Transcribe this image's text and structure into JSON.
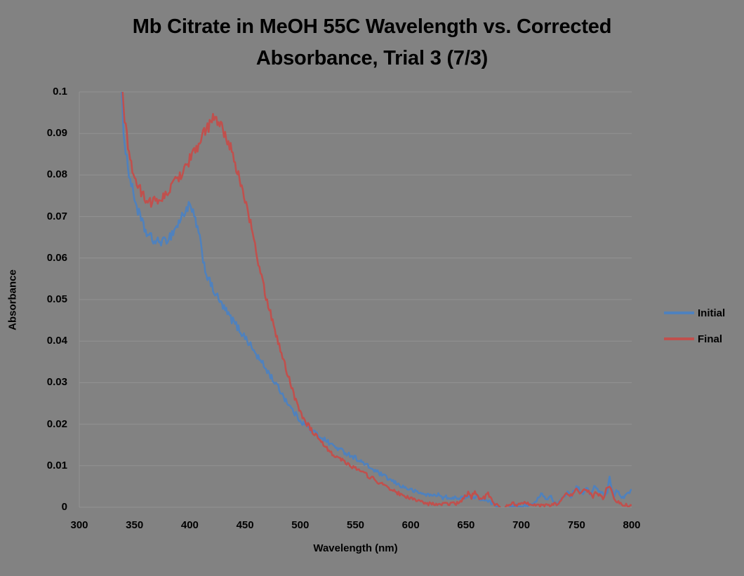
{
  "chart_data": {
    "type": "line",
    "title": "Mb Citrate in MeOH 55C Wavelength vs. Corrected Absorbance, Trial 3 (7/3)",
    "title_lines": [
      "Mb Citrate in MeOH 55C Wavelength vs. Corrected",
      "Absorbance, Trial 3 (7/3)"
    ],
    "xlabel": "Wavelength (nm)",
    "ylabel": "Absorbance",
    "xlim": [
      300,
      800
    ],
    "ylim": [
      0,
      0.1
    ],
    "x_ticks": [
      300,
      350,
      400,
      450,
      500,
      550,
      600,
      650,
      700,
      750,
      800
    ],
    "y_ticks": [
      0,
      0.01,
      0.02,
      0.03,
      0.04,
      0.05,
      0.06,
      0.07,
      0.08,
      0.09,
      0.1
    ],
    "y_tick_labels": [
      "0",
      "0.01",
      "0.02",
      "0.03",
      "0.04",
      "0.05",
      "0.06",
      "0.07",
      "0.08",
      "0.09",
      "0.1"
    ],
    "grid": "horizontal",
    "legend_position": "right",
    "colors": {
      "background": "#828282",
      "gridline": "#929292",
      "text": "#000000"
    },
    "noise": {
      "base": 0.0004,
      "scale": 0.013,
      "step_nm": 1
    },
    "series": [
      {
        "name": "Initial",
        "color": "#4F81BD",
        "points": [
          [
            336,
            0.112
          ],
          [
            338,
            0.1
          ],
          [
            340,
            0.0915
          ],
          [
            342,
            0.086
          ],
          [
            344,
            0.082
          ],
          [
            346,
            0.079
          ],
          [
            348,
            0.0765
          ],
          [
            350,
            0.0745
          ],
          [
            353,
            0.0715
          ],
          [
            356,
            0.069
          ],
          [
            359,
            0.067
          ],
          [
            362,
            0.0655
          ],
          [
            365,
            0.0648
          ],
          [
            368,
            0.064
          ],
          [
            371,
            0.0638
          ],
          [
            374,
            0.0642
          ],
          [
            377,
            0.0638
          ],
          [
            380,
            0.0648
          ],
          [
            383,
            0.0655
          ],
          [
            386,
            0.0668
          ],
          [
            389,
            0.068
          ],
          [
            392,
            0.0695
          ],
          [
            395,
            0.071
          ],
          [
            398,
            0.0722
          ],
          [
            400,
            0.0725
          ],
          [
            402,
            0.0712
          ],
          [
            404,
            0.0698
          ],
          [
            406,
            0.0682
          ],
          [
            408,
            0.0658
          ],
          [
            410,
            0.063
          ],
          [
            412,
            0.06
          ],
          [
            414,
            0.0572
          ],
          [
            416,
            0.0555
          ],
          [
            418,
            0.0542
          ],
          [
            420,
            0.053
          ],
          [
            423,
            0.0515
          ],
          [
            426,
            0.05
          ],
          [
            429,
            0.0487
          ],
          [
            432,
            0.0475
          ],
          [
            435,
            0.0463
          ],
          [
            438,
            0.0452
          ],
          [
            441,
            0.0442
          ],
          [
            444,
            0.043
          ],
          [
            447,
            0.042
          ],
          [
            450,
            0.041
          ],
          [
            453,
            0.0398
          ],
          [
            456,
            0.0385
          ],
          [
            459,
            0.0372
          ],
          [
            462,
            0.036
          ],
          [
            465,
            0.0348
          ],
          [
            468,
            0.0337
          ],
          [
            471,
            0.0325
          ],
          [
            474,
            0.0313
          ],
          [
            477,
            0.03
          ],
          [
            480,
            0.0288
          ],
          [
            483,
            0.0276
          ],
          [
            486,
            0.0262
          ],
          [
            489,
            0.025
          ],
          [
            492,
            0.0237
          ],
          [
            495,
            0.0226
          ],
          [
            498,
            0.0216
          ],
          [
            501,
            0.0207
          ],
          [
            504,
            0.0199
          ],
          [
            507,
            0.0192
          ],
          [
            510,
            0.0185
          ],
          [
            515,
            0.0176
          ],
          [
            520,
            0.0167
          ],
          [
            525,
            0.0157
          ],
          [
            530,
            0.0148
          ],
          [
            535,
            0.014
          ],
          [
            540,
            0.0133
          ],
          [
            545,
            0.0126
          ],
          [
            550,
            0.0119
          ],
          [
            555,
            0.011
          ],
          [
            560,
            0.0101
          ],
          [
            565,
            0.0092
          ],
          [
            570,
            0.0084
          ],
          [
            575,
            0.0076
          ],
          [
            580,
            0.0068
          ],
          [
            585,
            0.006
          ],
          [
            590,
            0.0053
          ],
          [
            595,
            0.0047
          ],
          [
            600,
            0.0042
          ],
          [
            605,
            0.0037
          ],
          [
            610,
            0.0033
          ],
          [
            615,
            0.003
          ],
          [
            620,
            0.0028
          ],
          [
            625,
            0.0032
          ],
          [
            628,
            0.0022
          ],
          [
            632,
            0.0025
          ],
          [
            636,
            0.0018
          ],
          [
            640,
            0.0026
          ],
          [
            644,
            0.002
          ],
          [
            648,
            0.0024
          ],
          [
            652,
            0.0028
          ],
          [
            656,
            0.0022
          ],
          [
            660,
            0.0025
          ],
          [
            664,
            0.0018
          ],
          [
            668,
            0.0015
          ],
          [
            672,
            0.0012
          ],
          [
            676,
            0.0006
          ],
          [
            680,
            0
          ],
          [
            684,
            -0.0008
          ],
          [
            688,
            -0.0006
          ],
          [
            692,
            0.0002
          ],
          [
            696,
            0.0004
          ],
          [
            700,
            0.0002
          ],
          [
            704,
            0.0006
          ],
          [
            708,
            0.0004
          ],
          [
            712,
            0.0008
          ],
          [
            715,
            0.002
          ],
          [
            718,
            0.0032
          ],
          [
            721,
            0.0025
          ],
          [
            724,
            0.0018
          ],
          [
            727,
            0.003
          ],
          [
            730,
            0.001
          ],
          [
            733,
            0.0006
          ],
          [
            736,
            0.0016
          ],
          [
            739,
            0.0028
          ],
          [
            742,
            0.0036
          ],
          [
            745,
            0.0026
          ],
          [
            748,
            0.004
          ],
          [
            751,
            0.005
          ],
          [
            754,
            0.0032
          ],
          [
            757,
            0.0036
          ],
          [
            760,
            0.0046
          ],
          [
            763,
            0.003
          ],
          [
            766,
            0.005
          ],
          [
            769,
            0.0042
          ],
          [
            772,
            0.0035
          ],
          [
            775,
            0.003
          ],
          [
            778,
            0.0035
          ],
          [
            780,
            0.0076
          ],
          [
            782,
            0.0045
          ],
          [
            784,
            0.0026
          ],
          [
            786,
            0.0044
          ],
          [
            788,
            0.0036
          ],
          [
            790,
            0.003
          ],
          [
            792,
            0.0022
          ],
          [
            794,
            0.003
          ],
          [
            796,
            0.0038
          ],
          [
            798,
            0.003
          ],
          [
            800,
            0.0043
          ]
        ]
      },
      {
        "name": "Final",
        "color": "#C0504D",
        "points": [
          [
            337,
            0.112
          ],
          [
            339,
            0.1
          ],
          [
            341,
            0.094
          ],
          [
            343,
            0.089
          ],
          [
            345,
            0.0855
          ],
          [
            347,
            0.0828
          ],
          [
            349,
            0.0805
          ],
          [
            351,
            0.0788
          ],
          [
            354,
            0.0768
          ],
          [
            357,
            0.0752
          ],
          [
            360,
            0.0744
          ],
          [
            363,
            0.0738
          ],
          [
            366,
            0.0735
          ],
          [
            369,
            0.0737
          ],
          [
            372,
            0.074
          ],
          [
            375,
            0.0744
          ],
          [
            378,
            0.0752
          ],
          [
            381,
            0.0762
          ],
          [
            384,
            0.0773
          ],
          [
            387,
            0.0784
          ],
          [
            390,
            0.0796
          ],
          [
            393,
            0.0808
          ],
          [
            396,
            0.0821
          ],
          [
            399,
            0.0834
          ],
          [
            402,
            0.0847
          ],
          [
            405,
            0.0861
          ],
          [
            408,
            0.0875
          ],
          [
            411,
            0.0889
          ],
          [
            414,
            0.0903
          ],
          [
            417,
            0.0917
          ],
          [
            420,
            0.0932
          ],
          [
            422,
            0.0942
          ],
          [
            424,
            0.093
          ],
          [
            426,
            0.0922
          ],
          [
            428,
            0.0916
          ],
          [
            430,
            0.091
          ],
          [
            433,
            0.0893
          ],
          [
            436,
            0.0872
          ],
          [
            439,
            0.0848
          ],
          [
            442,
            0.082
          ],
          [
            445,
            0.079
          ],
          [
            448,
            0.076
          ],
          [
            451,
            0.0728
          ],
          [
            454,
            0.0695
          ],
          [
            457,
            0.0655
          ],
          [
            460,
            0.0615
          ],
          [
            463,
            0.0575
          ],
          [
            466,
            0.054
          ],
          [
            469,
            0.0508
          ],
          [
            472,
            0.0477
          ],
          [
            475,
            0.0447
          ],
          [
            478,
            0.0417
          ],
          [
            481,
            0.039
          ],
          [
            484,
            0.0362
          ],
          [
            487,
            0.0335
          ],
          [
            490,
            0.0308
          ],
          [
            493,
            0.0282
          ],
          [
            496,
            0.0258
          ],
          [
            499,
            0.0237
          ],
          [
            502,
            0.022
          ],
          [
            505,
            0.0206
          ],
          [
            508,
            0.0194
          ],
          [
            511,
            0.0183
          ],
          [
            514,
            0.0172
          ],
          [
            517,
            0.0162
          ],
          [
            520,
            0.0152
          ],
          [
            525,
            0.0139
          ],
          [
            530,
            0.0128
          ],
          [
            535,
            0.0119
          ],
          [
            540,
            0.011
          ],
          [
            545,
            0.0102
          ],
          [
            550,
            0.0094
          ],
          [
            555,
            0.0086
          ],
          [
            560,
            0.0078
          ],
          [
            565,
            0.007
          ],
          [
            570,
            0.0062
          ],
          [
            575,
            0.0054
          ],
          [
            580,
            0.0046
          ],
          [
            585,
            0.0039
          ],
          [
            590,
            0.0032
          ],
          [
            595,
            0.0026
          ],
          [
            600,
            0.0021
          ],
          [
            605,
            0.0016
          ],
          [
            610,
            0.0012
          ],
          [
            615,
            0.0009
          ],
          [
            620,
            0.0007
          ],
          [
            625,
            0.0006
          ],
          [
            630,
            0.0007
          ],
          [
            635,
            0.0009
          ],
          [
            640,
            0.0008
          ],
          [
            645,
            0.0012
          ],
          [
            649,
            0.0026
          ],
          [
            652,
            0.0034
          ],
          [
            655,
            0.0024
          ],
          [
            658,
            0.0038
          ],
          [
            661,
            0.0026
          ],
          [
            664,
            0.0018
          ],
          [
            667,
            0.0024
          ],
          [
            670,
            0.0032
          ],
          [
            673,
            0.0018
          ],
          [
            676,
            0.0008
          ],
          [
            680,
            0.0002
          ],
          [
            684,
            -0.0004
          ],
          [
            688,
            0.0004
          ],
          [
            692,
            0.001
          ],
          [
            696,
            0.0005
          ],
          [
            700,
            0.0012
          ],
          [
            704,
            0.0014
          ],
          [
            708,
            0.0007
          ],
          [
            712,
            0.0004
          ],
          [
            716,
            0.0003
          ],
          [
            720,
            0.0006
          ],
          [
            724,
            0.0004
          ],
          [
            728,
            0.0009
          ],
          [
            732,
            0.0006
          ],
          [
            735,
            0.0014
          ],
          [
            738,
            0.0026
          ],
          [
            741,
            0.0034
          ],
          [
            744,
            0.0024
          ],
          [
            747,
            0.0036
          ],
          [
            750,
            0.0044
          ],
          [
            753,
            0.003
          ],
          [
            756,
            0.004
          ],
          [
            759,
            0.0046
          ],
          [
            762,
            0.0032
          ],
          [
            765,
            0.0026
          ],
          [
            768,
            0.0036
          ],
          [
            771,
            0.003
          ],
          [
            774,
            0.002
          ],
          [
            777,
            0.0042
          ],
          [
            780,
            0.0052
          ],
          [
            782,
            0.0036
          ],
          [
            784,
            0.002
          ],
          [
            786,
            0.0014
          ],
          [
            788,
            0.0011
          ],
          [
            790,
            0.0009
          ],
          [
            792,
            0.0007
          ],
          [
            794,
            0.0006
          ],
          [
            796,
            0.0005
          ],
          [
            798,
            0.0004
          ],
          [
            800,
            0.0004
          ]
        ]
      }
    ]
  }
}
